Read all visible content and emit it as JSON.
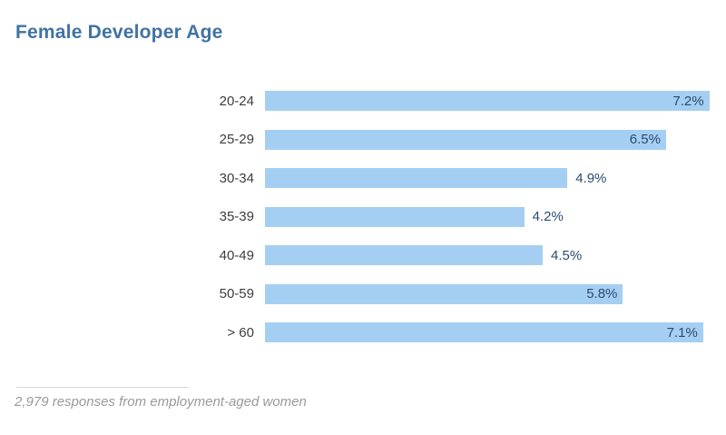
{
  "title": "Female Developer Age",
  "footnote": "2,979 responses from employment-aged women",
  "colors": {
    "background": "#ffffff",
    "title": "#4173a3",
    "bar": "#a5cff2",
    "value_label": "#2a4b6e",
    "category_label": "#3d3d3d",
    "footnote_text": "#9a9a9a",
    "footnote_rule": "#d9d9d9"
  },
  "chart_data": {
    "type": "bar",
    "orientation": "horizontal",
    "title": "Female Developer Age",
    "categories": [
      "20-24",
      "25-29",
      "30-34",
      "35-39",
      "40-49",
      "50-59",
      "> 60"
    ],
    "values": [
      7.2,
      6.5,
      4.9,
      4.2,
      4.5,
      5.8,
      7.1
    ],
    "value_labels": [
      "7.2%",
      "6.5%",
      "4.9%",
      "4.2%",
      "4.5%",
      "5.8%",
      "7.1%"
    ],
    "unit": "%",
    "xlabel": "",
    "ylabel": "",
    "xlim": [
      0,
      7.5
    ],
    "grid": false,
    "legend": false,
    "annotation": "2,979 responses from employment-aged women"
  }
}
